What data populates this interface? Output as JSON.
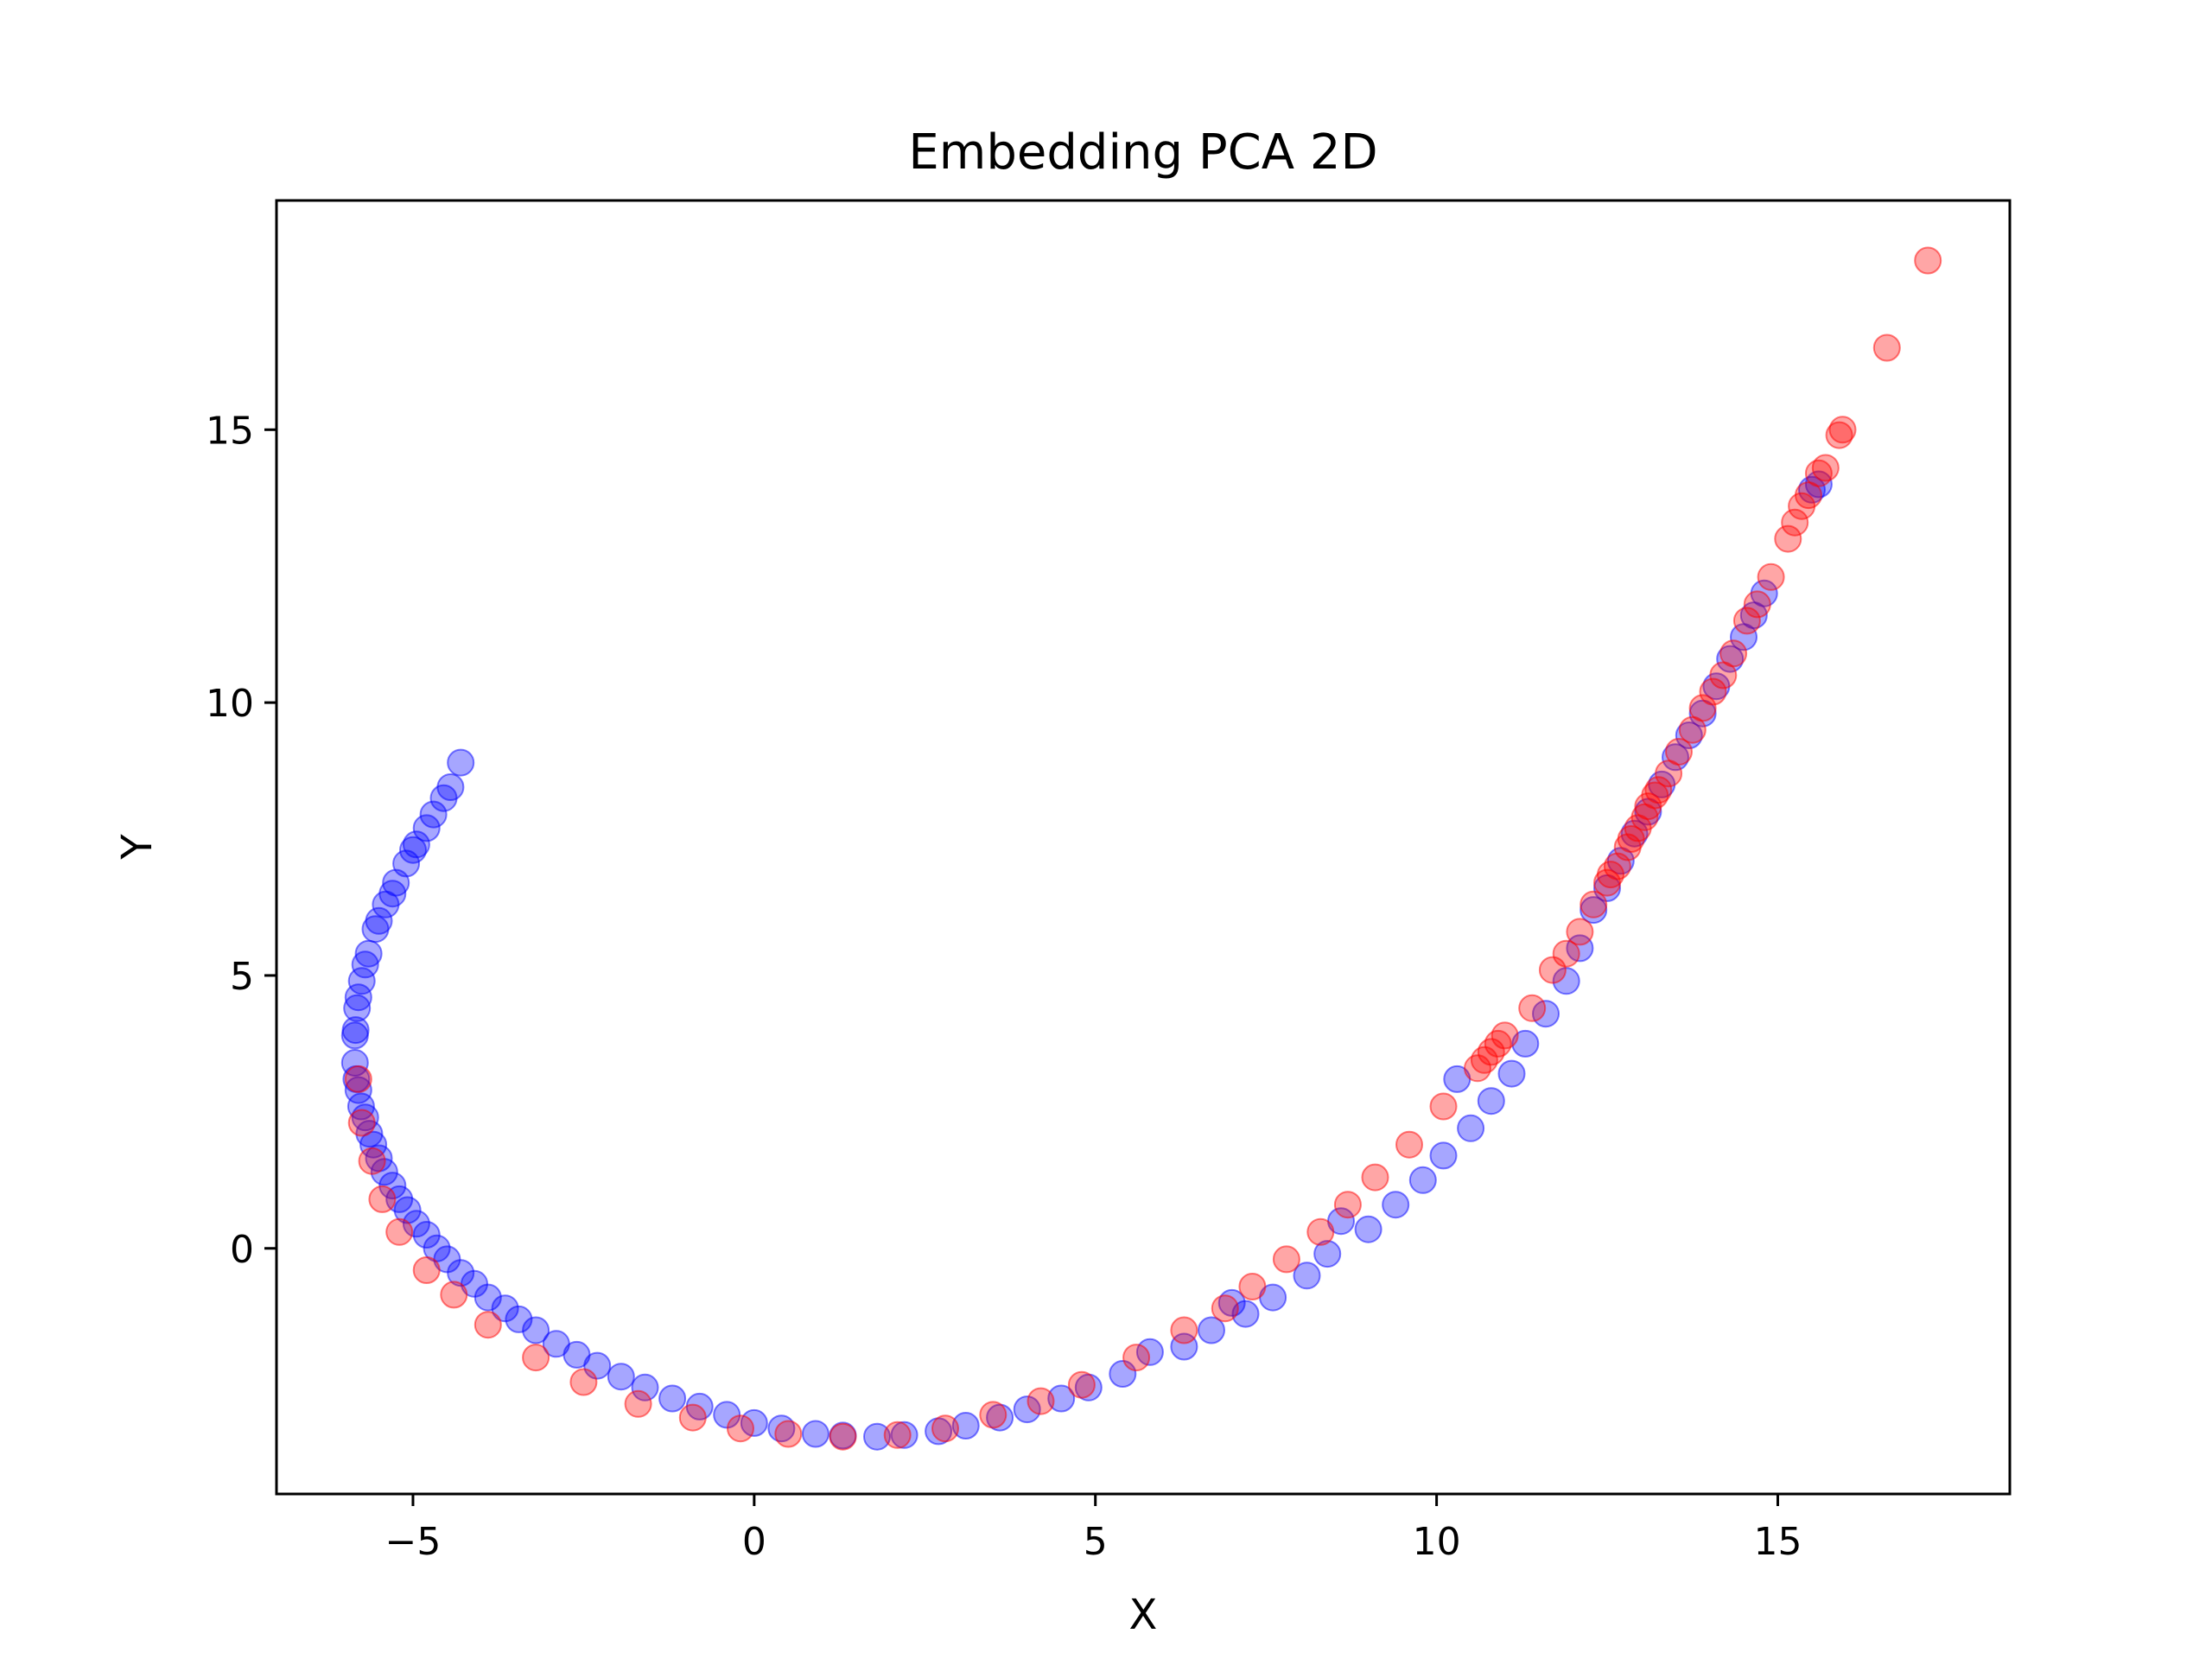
{
  "chart_data": {
    "type": "scatter",
    "title": "Embedding PCA 2D",
    "xlabel": "X",
    "ylabel": "Y",
    "xlim": [
      -7,
      18.4
    ],
    "ylim": [
      -4.5,
      19.2
    ],
    "xticks": [
      -5,
      0,
      5,
      10,
      15
    ],
    "yticks": [
      0,
      5,
      10,
      15
    ],
    "xtick_labels": [
      "−5",
      "0",
      "5",
      "10",
      "15"
    ],
    "ytick_labels": [
      "0",
      "5",
      "10",
      "15"
    ],
    "grid": false,
    "legend": "none",
    "marker_opacity": 0.35,
    "series": [
      {
        "color": "#0000ff",
        "points": [
          [
            -4.3,
            8.9
          ],
          [
            -4.45,
            8.45
          ],
          [
            -4.55,
            8.25
          ],
          [
            -4.7,
            7.95
          ],
          [
            -4.8,
            7.7
          ],
          [
            -4.95,
            7.4
          ],
          [
            -5.1,
            7.05
          ],
          [
            -5.25,
            6.7
          ],
          [
            -5.4,
            6.3
          ],
          [
            -5.55,
            5.85
          ],
          [
            -5.65,
            5.4
          ],
          [
            -5.75,
            4.9
          ],
          [
            -5.82,
            4.4
          ],
          [
            -5.85,
            3.9
          ],
          [
            -5.85,
            3.4
          ],
          [
            -5.8,
            2.9
          ],
          [
            -5.7,
            2.4
          ],
          [
            -5.58,
            1.9
          ],
          [
            -5.42,
            1.4
          ],
          [
            -5.2,
            0.9
          ],
          [
            -4.95,
            0.45
          ],
          [
            -4.65,
            0.0
          ],
          [
            -4.3,
            -0.45
          ],
          [
            -3.9,
            -0.9
          ],
          [
            -3.45,
            -1.3
          ],
          [
            -2.9,
            -1.75
          ],
          [
            -2.3,
            -2.15
          ],
          [
            -1.6,
            -2.55
          ],
          [
            -0.8,
            -2.9
          ],
          [
            0.0,
            -3.2
          ],
          [
            0.9,
            -3.4
          ],
          [
            1.8,
            -3.45
          ],
          [
            2.7,
            -3.35
          ],
          [
            3.6,
            -3.1
          ],
          [
            4.5,
            -2.75
          ],
          [
            5.4,
            -2.3
          ],
          [
            6.3,
            -1.8
          ],
          [
            7.2,
            -1.2
          ],
          [
            8.1,
            -0.5
          ],
          [
            9.0,
            0.35
          ],
          [
            9.8,
            1.25
          ],
          [
            10.5,
            2.2
          ],
          [
            11.1,
            3.2
          ],
          [
            11.6,
            4.3
          ],
          [
            12.1,
            5.5
          ],
          [
            12.5,
            6.6
          ],
          [
            12.9,
            7.6
          ],
          [
            13.3,
            8.5
          ],
          [
            13.7,
            9.4
          ],
          [
            14.1,
            10.3
          ],
          [
            14.5,
            11.2
          ],
          [
            14.8,
            12.0
          ],
          [
            15.6,
            14.0
          ],
          [
            15.5,
            13.9
          ],
          [
            13.9,
            9.8
          ],
          [
            12.3,
            6.2
          ],
          [
            10.3,
            3.1
          ],
          [
            8.6,
            0.5
          ],
          [
            7.0,
            -1.0
          ],
          [
            5.8,
            -1.9
          ],
          [
            -5.0,
            7.3
          ],
          [
            -5.3,
            6.5
          ],
          [
            -5.5,
            6.0
          ],
          [
            -5.7,
            5.2
          ],
          [
            -5.8,
            4.6
          ],
          [
            -5.84,
            4.0
          ],
          [
            -5.83,
            3.1
          ],
          [
            -5.76,
            2.6
          ],
          [
            -5.64,
            2.1
          ],
          [
            -5.5,
            1.65
          ],
          [
            -5.3,
            1.15
          ],
          [
            -5.08,
            0.7
          ],
          [
            -4.8,
            0.25
          ],
          [
            -4.5,
            -0.2
          ],
          [
            -4.1,
            -0.65
          ],
          [
            -3.65,
            -1.1
          ],
          [
            -3.2,
            -1.5
          ],
          [
            -2.6,
            -1.95
          ],
          [
            -1.95,
            -2.35
          ],
          [
            -1.2,
            -2.75
          ],
          [
            -0.4,
            -3.05
          ],
          [
            0.4,
            -3.3
          ],
          [
            1.3,
            -3.43
          ],
          [
            2.2,
            -3.42
          ],
          [
            3.1,
            -3.25
          ],
          [
            4.0,
            -2.95
          ],
          [
            4.9,
            -2.55
          ],
          [
            6.7,
            -1.5
          ],
          [
            7.6,
            -0.9
          ],
          [
            8.4,
            -0.1
          ],
          [
            9.4,
            0.8
          ],
          [
            10.1,
            1.7
          ],
          [
            10.8,
            2.7
          ],
          [
            11.3,
            3.75
          ],
          [
            11.9,
            4.9
          ],
          [
            12.7,
            7.1
          ],
          [
            13.1,
            8.0
          ],
          [
            13.5,
            9.0
          ],
          [
            14.3,
            10.8
          ],
          [
            14.65,
            11.6
          ]
        ]
      },
      {
        "color": "#ff0000",
        "points": [
          [
            17.2,
            18.1
          ],
          [
            16.6,
            16.5
          ],
          [
            15.95,
            15.0
          ],
          [
            15.9,
            14.9
          ],
          [
            15.7,
            14.3
          ],
          [
            15.6,
            14.2
          ],
          [
            15.45,
            13.8
          ],
          [
            15.35,
            13.6
          ],
          [
            15.25,
            13.3
          ],
          [
            15.15,
            13.0
          ],
          [
            14.9,
            12.3
          ],
          [
            14.7,
            11.8
          ],
          [
            14.55,
            11.5
          ],
          [
            14.35,
            10.9
          ],
          [
            14.2,
            10.5
          ],
          [
            14.05,
            10.2
          ],
          [
            13.9,
            9.9
          ],
          [
            13.75,
            9.5
          ],
          [
            13.55,
            9.1
          ],
          [
            13.4,
            8.7
          ],
          [
            13.25,
            8.4
          ],
          [
            13.1,
            8.1
          ],
          [
            12.95,
            7.7
          ],
          [
            12.8,
            7.35
          ],
          [
            12.65,
            7.0
          ],
          [
            12.5,
            6.7
          ],
          [
            12.3,
            6.3
          ],
          [
            12.1,
            5.8
          ],
          [
            11.9,
            5.4
          ],
          [
            11.7,
            5.1
          ],
          [
            11.4,
            4.4
          ],
          [
            11.0,
            3.9
          ],
          [
            10.8,
            3.6
          ],
          [
            10.6,
            3.3
          ],
          [
            10.1,
            2.6
          ],
          [
            9.6,
            1.9
          ],
          [
            9.1,
            1.3
          ],
          [
            8.7,
            0.8
          ],
          [
            8.3,
            0.3
          ],
          [
            7.8,
            -0.2
          ],
          [
            7.3,
            -0.7
          ],
          [
            6.9,
            -1.1
          ],
          [
            6.3,
            -1.5
          ],
          [
            5.6,
            -2.0
          ],
          [
            4.8,
            -2.5
          ],
          [
            4.2,
            -2.8
          ],
          [
            3.5,
            -3.05
          ],
          [
            2.8,
            -3.3
          ],
          [
            2.1,
            -3.42
          ],
          [
            1.3,
            -3.45
          ],
          [
            0.5,
            -3.4
          ],
          [
            -0.2,
            -3.3
          ],
          [
            -0.9,
            -3.1
          ],
          [
            -1.7,
            -2.85
          ],
          [
            -2.5,
            -2.45
          ],
          [
            -3.2,
            -2.0
          ],
          [
            -3.9,
            -1.4
          ],
          [
            -4.4,
            -0.85
          ],
          [
            -4.8,
            -0.4
          ],
          [
            -5.2,
            0.3
          ],
          [
            -5.45,
            0.9
          ],
          [
            -5.6,
            1.6
          ],
          [
            -5.75,
            2.3
          ],
          [
            -5.8,
            3.1
          ],
          [
            12.55,
            6.85
          ],
          [
            12.85,
            7.5
          ],
          [
            13.2,
            8.3
          ],
          [
            10.7,
            3.45
          ],
          [
            10.9,
            3.75
          ],
          [
            13.05,
            7.9
          ]
        ]
      }
    ]
  }
}
